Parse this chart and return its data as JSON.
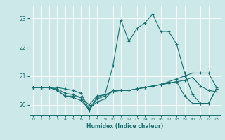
{
  "xlabel": "Humidex (Indice chaleur)",
  "bg_color": "#cce8e8",
  "line_color": "#1a7070",
  "grid_color": "#ffffff",
  "xlim": [
    -0.5,
    23.5
  ],
  "ylim": [
    19.65,
    23.45
  ],
  "yticks": [
    20,
    21,
    22,
    23
  ],
  "xticks": [
    0,
    1,
    2,
    3,
    4,
    5,
    6,
    7,
    8,
    9,
    10,
    11,
    12,
    13,
    14,
    15,
    16,
    17,
    18,
    19,
    20,
    21,
    22,
    23
  ],
  "series": [
    [
      20.6,
      20.6,
      20.6,
      20.6,
      20.55,
      20.5,
      20.4,
      19.85,
      20.1,
      20.2,
      20.5,
      20.5,
      20.5,
      20.55,
      20.6,
      20.65,
      20.7,
      20.8,
      20.9,
      21.0,
      21.1,
      21.1,
      21.1,
      20.6
    ],
    [
      20.6,
      20.6,
      20.6,
      20.55,
      20.4,
      20.35,
      20.25,
      20.0,
      20.3,
      20.35,
      20.45,
      20.5,
      20.5,
      20.55,
      20.6,
      20.65,
      20.7,
      20.75,
      20.8,
      20.85,
      20.95,
      20.65,
      20.5,
      20.45
    ],
    [
      20.6,
      20.6,
      20.6,
      20.5,
      20.3,
      20.3,
      20.25,
      19.8,
      20.2,
      20.3,
      20.5,
      20.5,
      20.5,
      20.55,
      20.6,
      20.65,
      20.7,
      20.75,
      20.8,
      20.3,
      20.05,
      20.05,
      20.05,
      20.55
    ],
    [
      20.6,
      20.6,
      20.6,
      20.5,
      20.3,
      20.25,
      20.15,
      19.85,
      20.25,
      20.35,
      21.35,
      22.95,
      22.2,
      22.65,
      22.85,
      23.15,
      22.55,
      22.55,
      22.1,
      21.1,
      20.35,
      20.05,
      20.05,
      20.55
    ]
  ]
}
